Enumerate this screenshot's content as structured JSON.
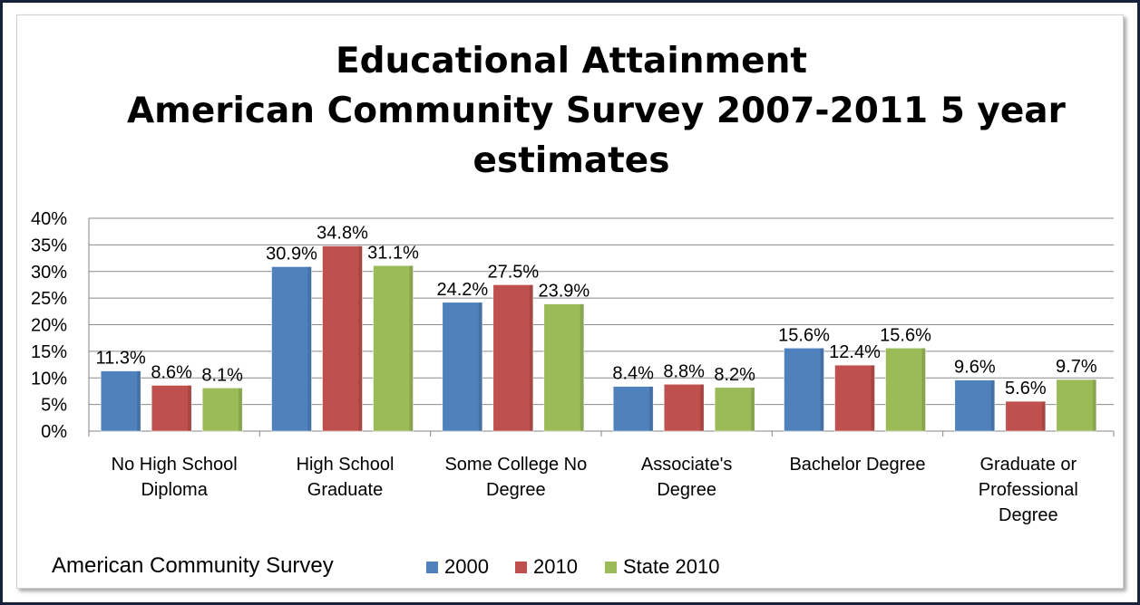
{
  "chart_data": {
    "type": "bar",
    "title_lines": [
      "Educational Attainment",
      "American Community Survey 2007-2011 5 year",
      "estimates"
    ],
    "categories": [
      [
        "No High School",
        "Diploma"
      ],
      [
        "High School",
        "Graduate"
      ],
      [
        "Some College No",
        "Degree"
      ],
      [
        "Associate's",
        "Degree"
      ],
      [
        "Bachelor Degree"
      ],
      [
        "Graduate or",
        "Professional",
        "Degree"
      ]
    ],
    "series": [
      {
        "name": "2000",
        "color": "#4f81bd",
        "values": [
          11.3,
          30.9,
          24.2,
          8.4,
          15.6,
          9.6
        ]
      },
      {
        "name": "2010",
        "color": "#c0504d",
        "values": [
          8.6,
          34.8,
          27.5,
          8.8,
          12.4,
          5.6
        ]
      },
      {
        "name": "State 2010",
        "color": "#9bbb59",
        "values": [
          8.1,
          31.1,
          23.9,
          8.2,
          15.6,
          9.7
        ]
      }
    ],
    "data_labels": [
      [
        "11.3%",
        "30.9%",
        "24.2%",
        "8.4%",
        "15.6%",
        "9.6%"
      ],
      [
        "8.6%",
        "34.8%",
        "27.5%",
        "8.8%",
        "12.4%",
        "5.6%"
      ],
      [
        "8.1%",
        "31.1%",
        "23.9%",
        "8.2%",
        "15.6%",
        "9.7%"
      ]
    ],
    "y_ticks": [
      "0%",
      "5%",
      "10%",
      "15%",
      "20%",
      "25%",
      "30%",
      "35%",
      "40%"
    ],
    "ylim": [
      0,
      40
    ],
    "grid": true,
    "legend_placement": "bottom"
  },
  "footer": {
    "label": "American Community Survey",
    "legend": [
      "2000",
      "2010",
      "State 2010"
    ]
  }
}
